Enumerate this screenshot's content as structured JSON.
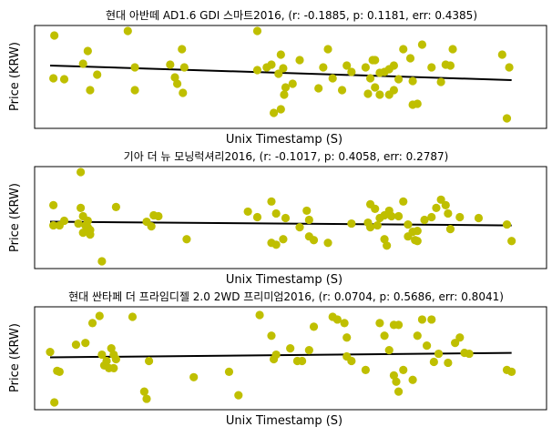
{
  "colors": {
    "point": "#bfbf00",
    "fit_line": "#000000",
    "frame": "#000000"
  },
  "chart_data": [
    {
      "type": "scatter",
      "title": "현대 아반떼 AD1.6 GDI 스마트2016, (r: -0.1885, p: 0.1181, err: 0.4385)",
      "xlabel": "Unix Timestamp (S)",
      "ylabel": "Price (KRW)",
      "x_ticks_shown": false,
      "y_ticks_shown": false,
      "xlim": [
        0,
        100
      ],
      "ylim": [
        0,
        100
      ],
      "fit_line": {
        "x": [
          0,
          98
        ],
        "y": [
          62,
          46
        ]
      },
      "points": [
        {
          "x": 0.9,
          "y": 95
        },
        {
          "x": 0.7,
          "y": 48
        },
        {
          "x": 3.0,
          "y": 47
        },
        {
          "x": 7.0,
          "y": 64
        },
        {
          "x": 8.0,
          "y": 78
        },
        {
          "x": 8.5,
          "y": 35
        },
        {
          "x": 10.0,
          "y": 52
        },
        {
          "x": 16.5,
          "y": 100
        },
        {
          "x": 18.0,
          "y": 60
        },
        {
          "x": 18.0,
          "y": 35
        },
        {
          "x": 25.5,
          "y": 63
        },
        {
          "x": 28.0,
          "y": 80
        },
        {
          "x": 27.0,
          "y": 42
        },
        {
          "x": 28.5,
          "y": 60
        },
        {
          "x": 26.5,
          "y": 49
        },
        {
          "x": 28.2,
          "y": 32
        },
        {
          "x": 44.0,
          "y": 100
        },
        {
          "x": 44.0,
          "y": 57
        },
        {
          "x": 46.0,
          "y": 60
        },
        {
          "x": 47.0,
          "y": 63
        },
        {
          "x": 48.5,
          "y": 53
        },
        {
          "x": 49.0,
          "y": 74
        },
        {
          "x": 47.5,
          "y": 10
        },
        {
          "x": 49.0,
          "y": 14
        },
        {
          "x": 49.5,
          "y": 59
        },
        {
          "x": 50.0,
          "y": 38
        },
        {
          "x": 49.7,
          "y": 30
        },
        {
          "x": 53.0,
          "y": 68
        },
        {
          "x": 51.5,
          "y": 42
        },
        {
          "x": 57.0,
          "y": 37
        },
        {
          "x": 58.0,
          "y": 60
        },
        {
          "x": 59.0,
          "y": 80
        },
        {
          "x": 60.0,
          "y": 48
        },
        {
          "x": 62.0,
          "y": 35
        },
        {
          "x": 63.0,
          "y": 62
        },
        {
          "x": 64.0,
          "y": 55
        },
        {
          "x": 68.5,
          "y": 68
        },
        {
          "x": 67.5,
          "y": 31
        },
        {
          "x": 67.0,
          "y": 60
        },
        {
          "x": 68.0,
          "y": 48
        },
        {
          "x": 69.0,
          "y": 68
        },
        {
          "x": 70.0,
          "y": 54
        },
        {
          "x": 71.0,
          "y": 55
        },
        {
          "x": 72.0,
          "y": 58
        },
        {
          "x": 73.0,
          "y": 62
        },
        {
          "x": 73.0,
          "y": 35
        },
        {
          "x": 72.0,
          "y": 30
        },
        {
          "x": 69.0,
          "y": 38
        },
        {
          "x": 70.0,
          "y": 30
        },
        {
          "x": 74.0,
          "y": 47
        },
        {
          "x": 75.0,
          "y": 80
        },
        {
          "x": 76.5,
          "y": 70
        },
        {
          "x": 77.0,
          "y": 19
        },
        {
          "x": 78.0,
          "y": 20
        },
        {
          "x": 77.0,
          "y": 45
        },
        {
          "x": 79.0,
          "y": 85
        },
        {
          "x": 81.0,
          "y": 60
        },
        {
          "x": 83.0,
          "y": 44
        },
        {
          "x": 84.0,
          "y": 63
        },
        {
          "x": 85.5,
          "y": 80
        },
        {
          "x": 85.0,
          "y": 62
        },
        {
          "x": 96.0,
          "y": 74
        },
        {
          "x": 97.5,
          "y": 60
        },
        {
          "x": 97.0,
          "y": 4
        }
      ]
    },
    {
      "type": "scatter",
      "title": "기아 더 뉴 모닝럭셔리2016, (r: -0.1017, p: 0.4058, err: 0.2787)",
      "xlabel": "Unix Timestamp (S)",
      "ylabel": "Price (KRW)",
      "x_ticks_shown": false,
      "y_ticks_shown": false,
      "xlim": [
        0,
        100
      ],
      "ylim": [
        0,
        100
      ],
      "fit_line": {
        "x": [
          0,
          98
        ],
        "y": [
          46,
          42
        ]
      },
      "points": [
        {
          "x": 0.7,
          "y": 64
        },
        {
          "x": 0.7,
          "y": 42
        },
        {
          "x": 2.0,
          "y": 42
        },
        {
          "x": 3.0,
          "y": 47
        },
        {
          "x": 6.0,
          "y": 44
        },
        {
          "x": 6.5,
          "y": 100
        },
        {
          "x": 6.5,
          "y": 61
        },
        {
          "x": 7.0,
          "y": 52
        },
        {
          "x": 7.5,
          "y": 42
        },
        {
          "x": 7.0,
          "y": 34
        },
        {
          "x": 8.5,
          "y": 37
        },
        {
          "x": 8.0,
          "y": 40
        },
        {
          "x": 8.0,
          "y": 47
        },
        {
          "x": 8.5,
          "y": 32
        },
        {
          "x": 11.0,
          "y": 3
        },
        {
          "x": 14.0,
          "y": 62
        },
        {
          "x": 20.5,
          "y": 46
        },
        {
          "x": 22.0,
          "y": 53
        },
        {
          "x": 21.5,
          "y": 41
        },
        {
          "x": 23.0,
          "y": 52
        },
        {
          "x": 29.0,
          "y": 27
        },
        {
          "x": 42.0,
          "y": 57
        },
        {
          "x": 44.0,
          "y": 51
        },
        {
          "x": 47.0,
          "y": 68
        },
        {
          "x": 48.0,
          "y": 55
        },
        {
          "x": 47.0,
          "y": 23
        },
        {
          "x": 48.0,
          "y": 21
        },
        {
          "x": 49.5,
          "y": 27
        },
        {
          "x": 50.0,
          "y": 50
        },
        {
          "x": 53.0,
          "y": 40
        },
        {
          "x": 55.0,
          "y": 48
        },
        {
          "x": 54.5,
          "y": 58
        },
        {
          "x": 55.0,
          "y": 30
        },
        {
          "x": 56.0,
          "y": 26
        },
        {
          "x": 59.0,
          "y": 23
        },
        {
          "x": 64.0,
          "y": 44
        },
        {
          "x": 67.5,
          "y": 45
        },
        {
          "x": 68.0,
          "y": 40
        },
        {
          "x": 68.0,
          "y": 65
        },
        {
          "x": 69.0,
          "y": 60
        },
        {
          "x": 69.5,
          "y": 42
        },
        {
          "x": 70.0,
          "y": 50
        },
        {
          "x": 71.0,
          "y": 53
        },
        {
          "x": 71.0,
          "y": 27
        },
        {
          "x": 71.5,
          "y": 20
        },
        {
          "x": 72.5,
          "y": 52
        },
        {
          "x": 72.0,
          "y": 58
        },
        {
          "x": 74.0,
          "y": 52
        },
        {
          "x": 75.0,
          "y": 68
        },
        {
          "x": 76.0,
          "y": 43
        },
        {
          "x": 76.0,
          "y": 30
        },
        {
          "x": 77.0,
          "y": 35
        },
        {
          "x": 77.5,
          "y": 26
        },
        {
          "x": 78.0,
          "y": 36
        },
        {
          "x": 78.0,
          "y": 25
        },
        {
          "x": 79.5,
          "y": 48
        },
        {
          "x": 81.0,
          "y": 51
        },
        {
          "x": 82.0,
          "y": 61
        },
        {
          "x": 83.0,
          "y": 70
        },
        {
          "x": 84.0,
          "y": 64
        },
        {
          "x": 84.5,
          "y": 55
        },
        {
          "x": 85.0,
          "y": 38
        },
        {
          "x": 87.0,
          "y": 51
        },
        {
          "x": 91.0,
          "y": 50
        },
        {
          "x": 97.0,
          "y": 43
        },
        {
          "x": 98.0,
          "y": 25
        }
      ]
    },
    {
      "type": "scatter",
      "title": "현대 싼타페 더 프라임디젤 2.0 2WD 프리미엄2016, (r: 0.0704, p: 0.5686, err: 0.8041)",
      "xlabel": "Unix Timestamp (S)",
      "ylabel": "Price (KRW)",
      "x_ticks_shown": false,
      "y_ticks_shown": false,
      "xlim": [
        0,
        100
      ],
      "ylim": [
        0,
        100
      ],
      "fit_line": {
        "x": [
          0,
          98
        ],
        "y": [
          52,
          57
        ]
      },
      "points": [
        {
          "x": 0.0,
          "y": 58
        },
        {
          "x": 1.5,
          "y": 37
        },
        {
          "x": 2.0,
          "y": 36
        },
        {
          "x": 0.9,
          "y": 2
        },
        {
          "x": 5.5,
          "y": 66
        },
        {
          "x": 7.5,
          "y": 68
        },
        {
          "x": 9.0,
          "y": 90
        },
        {
          "x": 10.5,
          "y": 98
        },
        {
          "x": 11.0,
          "y": 55
        },
        {
          "x": 11.5,
          "y": 43
        },
        {
          "x": 12.0,
          "y": 48
        },
        {
          "x": 12.5,
          "y": 40
        },
        {
          "x": 13.5,
          "y": 40
        },
        {
          "x": 14.0,
          "y": 50
        },
        {
          "x": 13.0,
          "y": 62
        },
        {
          "x": 13.5,
          "y": 55
        },
        {
          "x": 17.5,
          "y": 97
        },
        {
          "x": 21.0,
          "y": 48
        },
        {
          "x": 20.0,
          "y": 14
        },
        {
          "x": 20.5,
          "y": 6
        },
        {
          "x": 30.5,
          "y": 30
        },
        {
          "x": 38.0,
          "y": 36
        },
        {
          "x": 40.0,
          "y": 10
        },
        {
          "x": 44.5,
          "y": 99
        },
        {
          "x": 47.0,
          "y": 76
        },
        {
          "x": 47.5,
          "y": 50
        },
        {
          "x": 48.0,
          "y": 55
        },
        {
          "x": 51.0,
          "y": 62
        },
        {
          "x": 52.5,
          "y": 48
        },
        {
          "x": 53.5,
          "y": 48
        },
        {
          "x": 55.0,
          "y": 60
        },
        {
          "x": 56.0,
          "y": 86
        },
        {
          "x": 60.0,
          "y": 97
        },
        {
          "x": 61.0,
          "y": 94
        },
        {
          "x": 62.5,
          "y": 90
        },
        {
          "x": 63.0,
          "y": 74
        },
        {
          "x": 63.0,
          "y": 53
        },
        {
          "x": 64.0,
          "y": 48
        },
        {
          "x": 67.0,
          "y": 38
        },
        {
          "x": 70.0,
          "y": 90
        },
        {
          "x": 71.0,
          "y": 76
        },
        {
          "x": 72.0,
          "y": 60
        },
        {
          "x": 73.0,
          "y": 88
        },
        {
          "x": 74.0,
          "y": 88
        },
        {
          "x": 73.0,
          "y": 32
        },
        {
          "x": 73.5,
          "y": 25
        },
        {
          "x": 74.0,
          "y": 14
        },
        {
          "x": 75.0,
          "y": 38
        },
        {
          "x": 77.0,
          "y": 27
        },
        {
          "x": 78.0,
          "y": 76
        },
        {
          "x": 79.0,
          "y": 94
        },
        {
          "x": 81.0,
          "y": 94
        },
        {
          "x": 80.0,
          "y": 65
        },
        {
          "x": 81.5,
          "y": 47
        },
        {
          "x": 82.5,
          "y": 56
        },
        {
          "x": 84.5,
          "y": 46
        },
        {
          "x": 86.0,
          "y": 68
        },
        {
          "x": 87.0,
          "y": 74
        },
        {
          "x": 88.0,
          "y": 57
        },
        {
          "x": 89.0,
          "y": 56
        },
        {
          "x": 97.0,
          "y": 38
        },
        {
          "x": 98.0,
          "y": 36
        }
      ]
    }
  ]
}
